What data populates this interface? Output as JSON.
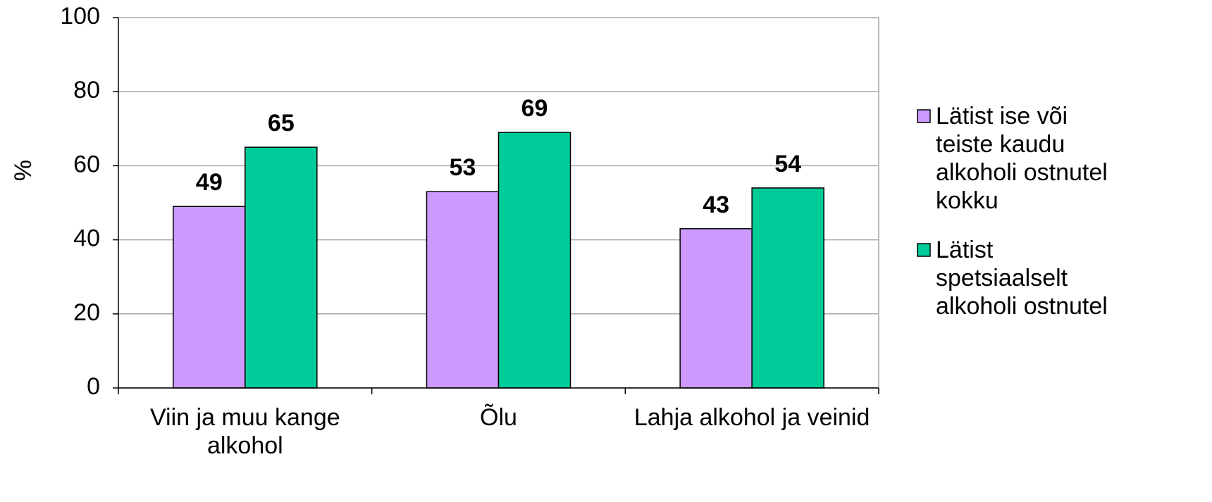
{
  "chart_data": {
    "type": "bar",
    "y_label": "%",
    "categories": [
      "Viin ja muu kange alkohol",
      "Õlu",
      "Lahja alkohol ja veinid"
    ],
    "series": [
      {
        "name": "Lätist ise või teiste kaudu alkoholi ostnutel kokku",
        "color": "#cc99ff",
        "values": [
          49,
          53,
          43
        ]
      },
      {
        "name": "Lätist spetsiaalselt alkoholi ostnutel",
        "color": "#00cc99",
        "values": [
          65,
          69,
          54
        ]
      }
    ],
    "ylim": [
      0,
      100
    ],
    "yticks": [
      0,
      20,
      40,
      60,
      80,
      100
    ],
    "grid": true,
    "legend": "right"
  }
}
